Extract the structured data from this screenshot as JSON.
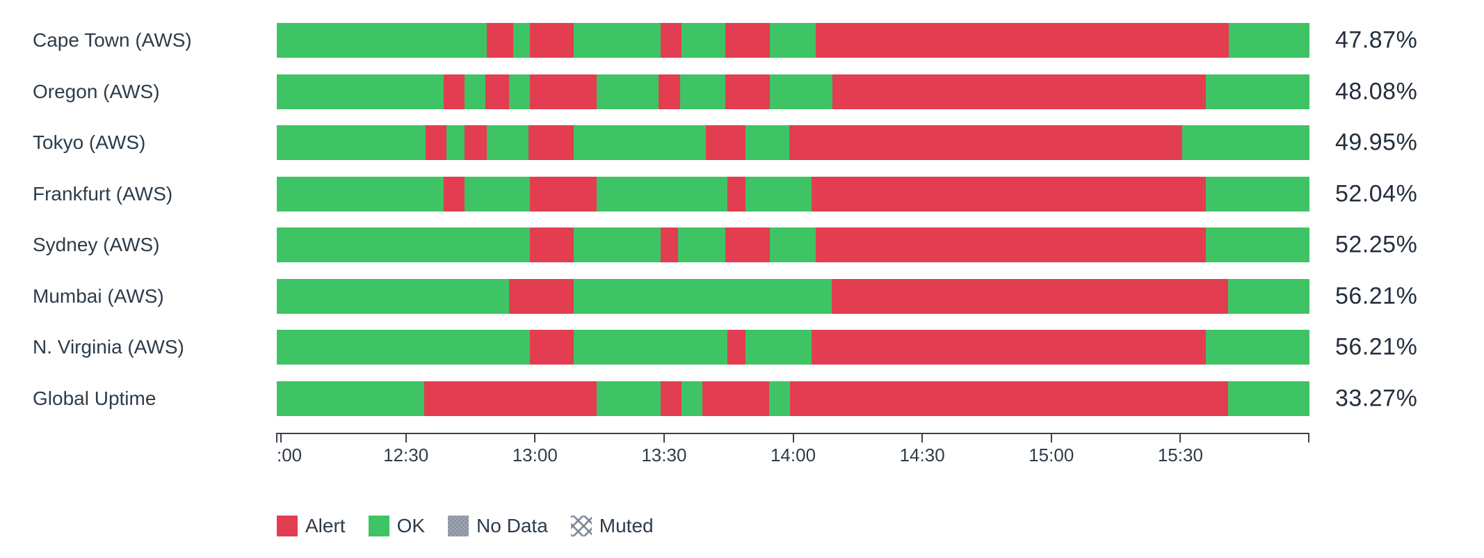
{
  "chart_data": {
    "type": "bar",
    "subtype": "check-status-timeline",
    "orientation": "horizontal",
    "grid": false,
    "legend_position": "bottom-left",
    "colors": {
      "alert": "#e23d51",
      "ok": "#3ec464",
      "no_data": "#99a1ad",
      "text": "#2d3c49"
    },
    "axis_ticks": [
      {
        "label": ":00",
        "pct": 0,
        "align": "left"
      },
      {
        "label": "12:30",
        "pct": 12.5
      },
      {
        "label": "13:00",
        "pct": 25
      },
      {
        "label": "13:30",
        "pct": 37.5
      },
      {
        "label": "14:00",
        "pct": 50
      },
      {
        "label": "14:30",
        "pct": 62.5
      },
      {
        "label": "15:00",
        "pct": 75
      },
      {
        "label": "15:30",
        "pct": 87.5
      }
    ],
    "rows": [
      {
        "label": "Cape Town (AWS)",
        "uptime": "47.87%",
        "segments": [
          {
            "status": "ok",
            "pct": 20.34
          },
          {
            "status": "alert",
            "pct": 2.56
          },
          {
            "status": "ok",
            "pct": 1.62
          },
          {
            "status": "alert",
            "pct": 4.24
          },
          {
            "status": "ok",
            "pct": 8.42
          },
          {
            "status": "alert",
            "pct": 2.02
          },
          {
            "status": "ok",
            "pct": 4.24
          },
          {
            "status": "alert",
            "pct": 4.31
          },
          {
            "status": "ok",
            "pct": 4.44
          },
          {
            "status": "alert",
            "pct": 40.0
          },
          {
            "status": "ok",
            "pct": 7.81
          }
        ]
      },
      {
        "label": "Oregon (AWS)",
        "uptime": "48.08%",
        "segments": [
          {
            "status": "ok",
            "pct": 16.16
          },
          {
            "status": "alert",
            "pct": 2.02
          },
          {
            "status": "ok",
            "pct": 2.02
          },
          {
            "status": "alert",
            "pct": 2.29
          },
          {
            "status": "ok",
            "pct": 2.02
          },
          {
            "status": "alert",
            "pct": 6.46
          },
          {
            "status": "ok",
            "pct": 5.99
          },
          {
            "status": "alert",
            "pct": 2.09
          },
          {
            "status": "ok",
            "pct": 4.38
          },
          {
            "status": "alert",
            "pct": 4.31
          },
          {
            "status": "ok",
            "pct": 6.06
          },
          {
            "status": "alert",
            "pct": 36.16
          },
          {
            "status": "ok",
            "pct": 10.03
          }
        ]
      },
      {
        "label": "Tokyo (AWS)",
        "uptime": "49.95%",
        "segments": [
          {
            "status": "ok",
            "pct": 14.41
          },
          {
            "status": "alert",
            "pct": 2.02
          },
          {
            "status": "ok",
            "pct": 1.75
          },
          {
            "status": "alert",
            "pct": 2.15
          },
          {
            "status": "ok",
            "pct": 4.04
          },
          {
            "status": "alert",
            "pct": 4.38
          },
          {
            "status": "ok",
            "pct": 12.79
          },
          {
            "status": "alert",
            "pct": 3.84
          },
          {
            "status": "ok",
            "pct": 4.24
          },
          {
            "status": "alert",
            "pct": 38.05
          },
          {
            "status": "ok",
            "pct": 12.32
          }
        ]
      },
      {
        "label": "Frankfurt (AWS)",
        "uptime": "52.04%",
        "segments": [
          {
            "status": "ok",
            "pct": 16.16
          },
          {
            "status": "alert",
            "pct": 2.02
          },
          {
            "status": "ok",
            "pct": 6.33
          },
          {
            "status": "alert",
            "pct": 6.46
          },
          {
            "status": "ok",
            "pct": 12.66
          },
          {
            "status": "alert",
            "pct": 1.75
          },
          {
            "status": "ok",
            "pct": 6.4
          },
          {
            "status": "alert",
            "pct": 38.18
          },
          {
            "status": "ok",
            "pct": 10.03
          }
        ]
      },
      {
        "label": "Sydney (AWS)",
        "uptime": "52.25%",
        "segments": [
          {
            "status": "ok",
            "pct": 24.51
          },
          {
            "status": "alert",
            "pct": 4.24
          },
          {
            "status": "ok",
            "pct": 8.42
          },
          {
            "status": "alert",
            "pct": 1.68
          },
          {
            "status": "ok",
            "pct": 4.58
          },
          {
            "status": "alert",
            "pct": 4.31
          },
          {
            "status": "ok",
            "pct": 4.44
          },
          {
            "status": "alert",
            "pct": 37.78
          },
          {
            "status": "ok",
            "pct": 10.03
          }
        ]
      },
      {
        "label": "Mumbai (AWS)",
        "uptime": "56.21%",
        "segments": [
          {
            "status": "ok",
            "pct": 22.49
          },
          {
            "status": "alert",
            "pct": 6.26
          },
          {
            "status": "ok",
            "pct": 24.98
          },
          {
            "status": "alert",
            "pct": 38.38
          },
          {
            "status": "ok",
            "pct": 7.88
          }
        ]
      },
      {
        "label": "N. Virginia (AWS)",
        "uptime": "56.21%",
        "segments": [
          {
            "status": "ok",
            "pct": 24.51
          },
          {
            "status": "alert",
            "pct": 4.24
          },
          {
            "status": "ok",
            "pct": 14.88
          },
          {
            "status": "alert",
            "pct": 1.75
          },
          {
            "status": "ok",
            "pct": 6.4
          },
          {
            "status": "alert",
            "pct": 38.18
          },
          {
            "status": "ok",
            "pct": 10.03
          }
        ]
      },
      {
        "label": "Global Uptime",
        "uptime": "33.27%",
        "segments": [
          {
            "status": "ok",
            "pct": 14.28
          },
          {
            "status": "alert",
            "pct": 16.7
          },
          {
            "status": "ok",
            "pct": 6.19
          },
          {
            "status": "alert",
            "pct": 2.02
          },
          {
            "status": "ok",
            "pct": 2.02
          },
          {
            "status": "alert",
            "pct": 6.46
          },
          {
            "status": "ok",
            "pct": 2.02
          },
          {
            "status": "alert",
            "pct": 42.42
          },
          {
            "status": "ok",
            "pct": 7.88
          }
        ]
      }
    ],
    "legend": [
      {
        "id": "alert",
        "label": "Alert"
      },
      {
        "id": "ok",
        "label": "OK"
      },
      {
        "id": "no_data",
        "label": "No Data"
      },
      {
        "id": "muted",
        "label": "Muted"
      }
    ]
  }
}
